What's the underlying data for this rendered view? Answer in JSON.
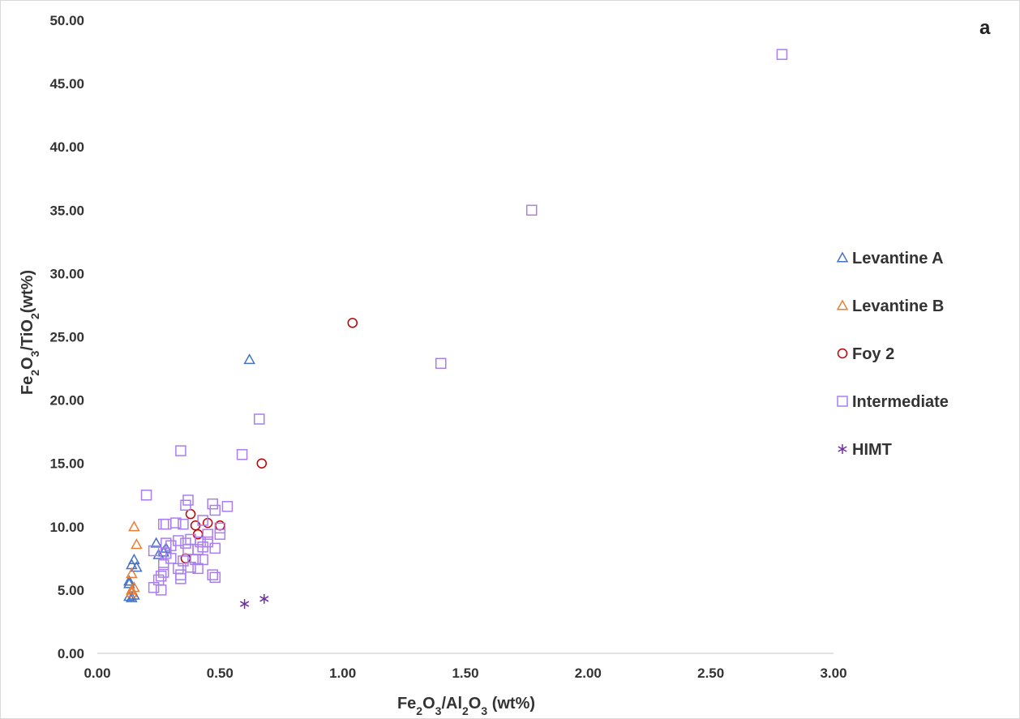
{
  "chart_data": {
    "type": "scatter",
    "panel_label": "a",
    "title": "",
    "xlabel": {
      "main": "Fe",
      "parts": [
        [
          "Fe",
          ""
        ],
        [
          "2",
          "sub"
        ],
        [
          "O",
          ""
        ],
        [
          "3",
          "sub"
        ],
        [
          "/Al",
          ""
        ],
        [
          "2",
          "sub"
        ],
        [
          "O",
          ""
        ],
        [
          "3",
          "sub"
        ],
        [
          " (wt%)",
          ""
        ]
      ]
    },
    "ylabel": {
      "parts": [
        [
          "Fe",
          ""
        ],
        [
          "2",
          "sub"
        ],
        [
          "O",
          ""
        ],
        [
          "3",
          "sub"
        ],
        [
          "/TiO",
          ""
        ],
        [
          "2",
          "sub"
        ],
        [
          "(wt%)",
          ""
        ]
      ]
    },
    "xlim": [
      0,
      3
    ],
    "ylim": [
      0,
      50
    ],
    "xticks": [
      "0.00",
      "0.50",
      "1.00",
      "1.50",
      "2.00",
      "2.50",
      "3.00"
    ],
    "yticks": [
      "0.00",
      "5.00",
      "10.00",
      "15.00",
      "20.00",
      "25.00",
      "30.00",
      "35.00",
      "40.00",
      "45.00",
      "50.00"
    ],
    "legend_position": "right",
    "grid": false,
    "series": [
      {
        "name": "Levantine A",
        "marker": "triangle",
        "color": "#4472C4",
        "points": [
          [
            0.62,
            23.2
          ],
          [
            0.14,
            7.0
          ],
          [
            0.15,
            7.4
          ],
          [
            0.16,
            6.8
          ],
          [
            0.13,
            5.7
          ],
          [
            0.13,
            5.5
          ],
          [
            0.13,
            4.5
          ],
          [
            0.14,
            4.4
          ],
          [
            0.15,
            4.6
          ],
          [
            0.24,
            8.7
          ],
          [
            0.25,
            7.8
          ],
          [
            0.28,
            8.3
          ],
          [
            0.27,
            8.0
          ]
        ]
      },
      {
        "name": "Levantine B",
        "marker": "triangle",
        "color": "#ED7D31",
        "points": [
          [
            0.15,
            10.0
          ],
          [
            0.16,
            8.6
          ],
          [
            0.14,
            6.3
          ],
          [
            0.14,
            5.0
          ],
          [
            0.15,
            5.2
          ],
          [
            0.14,
            4.8
          ]
        ]
      },
      {
        "name": "Foy 2",
        "marker": "circle",
        "color": "#C00000",
        "points": [
          [
            1.04,
            26.1
          ],
          [
            0.67,
            15.0
          ],
          [
            0.38,
            11.0
          ],
          [
            0.4,
            10.1
          ],
          [
            0.45,
            10.3
          ],
          [
            0.5,
            10.1
          ],
          [
            0.41,
            9.4
          ],
          [
            0.36,
            7.5
          ]
        ]
      },
      {
        "name": "Intermediate",
        "marker": "square",
        "color": "#A87EF0",
        "points": [
          [
            2.79,
            47.3
          ],
          [
            1.77,
            35.0
          ],
          [
            1.4,
            22.9
          ],
          [
            0.66,
            18.5
          ],
          [
            0.34,
            16.0
          ],
          [
            0.59,
            15.7
          ],
          [
            0.2,
            12.5
          ],
          [
            0.37,
            12.1
          ],
          [
            0.47,
            11.8
          ],
          [
            0.53,
            11.6
          ],
          [
            0.36,
            11.7
          ],
          [
            0.48,
            11.3
          ],
          [
            0.43,
            10.5
          ],
          [
            0.27,
            10.2
          ],
          [
            0.28,
            10.2
          ],
          [
            0.32,
            10.3
          ],
          [
            0.35,
            10.2
          ],
          [
            0.5,
            9.9
          ],
          [
            0.5,
            9.4
          ],
          [
            0.45,
            9.4
          ],
          [
            0.28,
            8.7
          ],
          [
            0.33,
            8.9
          ],
          [
            0.36,
            8.7
          ],
          [
            0.38,
            9.0
          ],
          [
            0.42,
            8.8
          ],
          [
            0.45,
            8.8
          ],
          [
            0.23,
            8.1
          ],
          [
            0.28,
            7.9
          ],
          [
            0.3,
            8.5
          ],
          [
            0.37,
            8.2
          ],
          [
            0.41,
            8.2
          ],
          [
            0.43,
            8.4
          ],
          [
            0.48,
            8.3
          ],
          [
            0.3,
            7.5
          ],
          [
            0.35,
            7.3
          ],
          [
            0.4,
            7.4
          ],
          [
            0.43,
            7.4
          ],
          [
            0.27,
            7.0
          ],
          [
            0.33,
            6.7
          ],
          [
            0.38,
            6.8
          ],
          [
            0.41,
            6.7
          ],
          [
            0.27,
            6.4
          ],
          [
            0.34,
            6.2
          ],
          [
            0.47,
            6.2
          ],
          [
            0.26,
            6.1
          ],
          [
            0.34,
            5.9
          ],
          [
            0.48,
            6.0
          ],
          [
            0.25,
            5.8
          ],
          [
            0.23,
            5.2
          ],
          [
            0.26,
            5.0
          ]
        ]
      },
      {
        "name": "HIMT",
        "marker": "star",
        "color": "#7030A0",
        "points": [
          [
            0.6,
            3.9
          ],
          [
            0.68,
            4.3
          ]
        ]
      }
    ]
  }
}
